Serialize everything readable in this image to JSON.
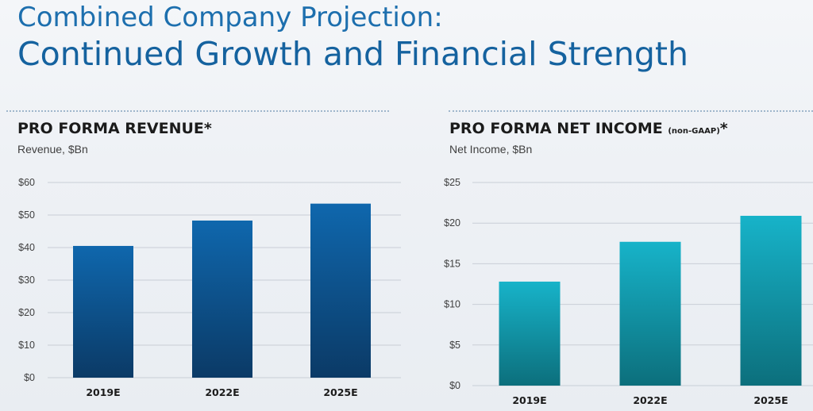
{
  "header": {
    "title_line1": "Combined Company Projection:",
    "title_line2": "Continued Growth and Financial Strength"
  },
  "panels": {
    "revenue": {
      "title": "PRO FORMA REVENUE*",
      "subtitle": "Revenue, $Bn"
    },
    "net_income": {
      "title_main": "PRO FORMA NET INCOME ",
      "title_small": "(non-GAAP)",
      "title_star": "*",
      "subtitle": "Net Income, $Bn"
    }
  },
  "colors": {
    "revenue_bar_top": "#0f67ad",
    "revenue_bar_bottom": "#0b3a66",
    "income_bar_top": "#17b3c9",
    "income_bar_bottom": "#0c6f7c",
    "title": "#1d6fae"
  },
  "chart_data": [
    {
      "type": "bar",
      "title": "PRO FORMA REVENUE*",
      "ylabel": "Revenue, $Bn",
      "categories": [
        "2019E",
        "2022E",
        "2025E"
      ],
      "values": [
        40.5,
        48.3,
        53.5
      ],
      "ylim": [
        0,
        60
      ],
      "yticks": [
        0,
        10,
        20,
        30,
        40,
        50,
        60
      ],
      "ytick_labels": [
        "$0",
        "$10",
        "$20",
        "$30",
        "$40",
        "$50",
        "$60"
      ],
      "grid": true
    },
    {
      "type": "bar",
      "title": "PRO FORMA NET INCOME (non-GAAP)*",
      "ylabel": "Net Income, $Bn",
      "categories": [
        "2019E",
        "2022E",
        "2025E"
      ],
      "values": [
        12.8,
        17.7,
        20.9
      ],
      "ylim": [
        0,
        25
      ],
      "yticks": [
        0,
        5,
        10,
        15,
        20,
        25
      ],
      "ytick_labels": [
        "$0",
        "$5",
        "$10",
        "$15",
        "$20",
        "$25"
      ],
      "grid": true
    }
  ]
}
